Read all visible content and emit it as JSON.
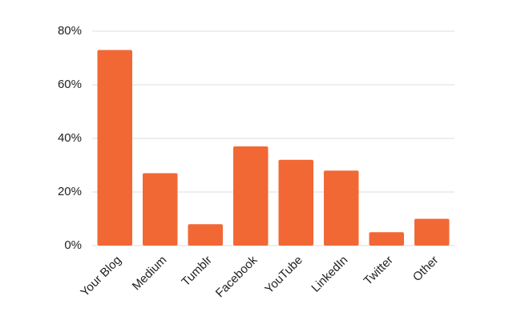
{
  "chart_data": {
    "type": "bar",
    "categories": [
      "Your Blog",
      "Medium",
      "Tumblr",
      "Facebook",
      "YouTube",
      "LinkedIn",
      "Twitter",
      "Other"
    ],
    "values": [
      73,
      27,
      8,
      37,
      32,
      28,
      5,
      10
    ],
    "color": "#f26835",
    "ylim": [
      0,
      80
    ],
    "yticks": [
      {
        "value": 0,
        "label": "0%"
      },
      {
        "value": 20,
        "label": "20%"
      },
      {
        "value": 40,
        "label": "40%"
      },
      {
        "value": 60,
        "label": "60%"
      },
      {
        "value": 80,
        "label": "80%"
      }
    ],
    "grid": true
  }
}
